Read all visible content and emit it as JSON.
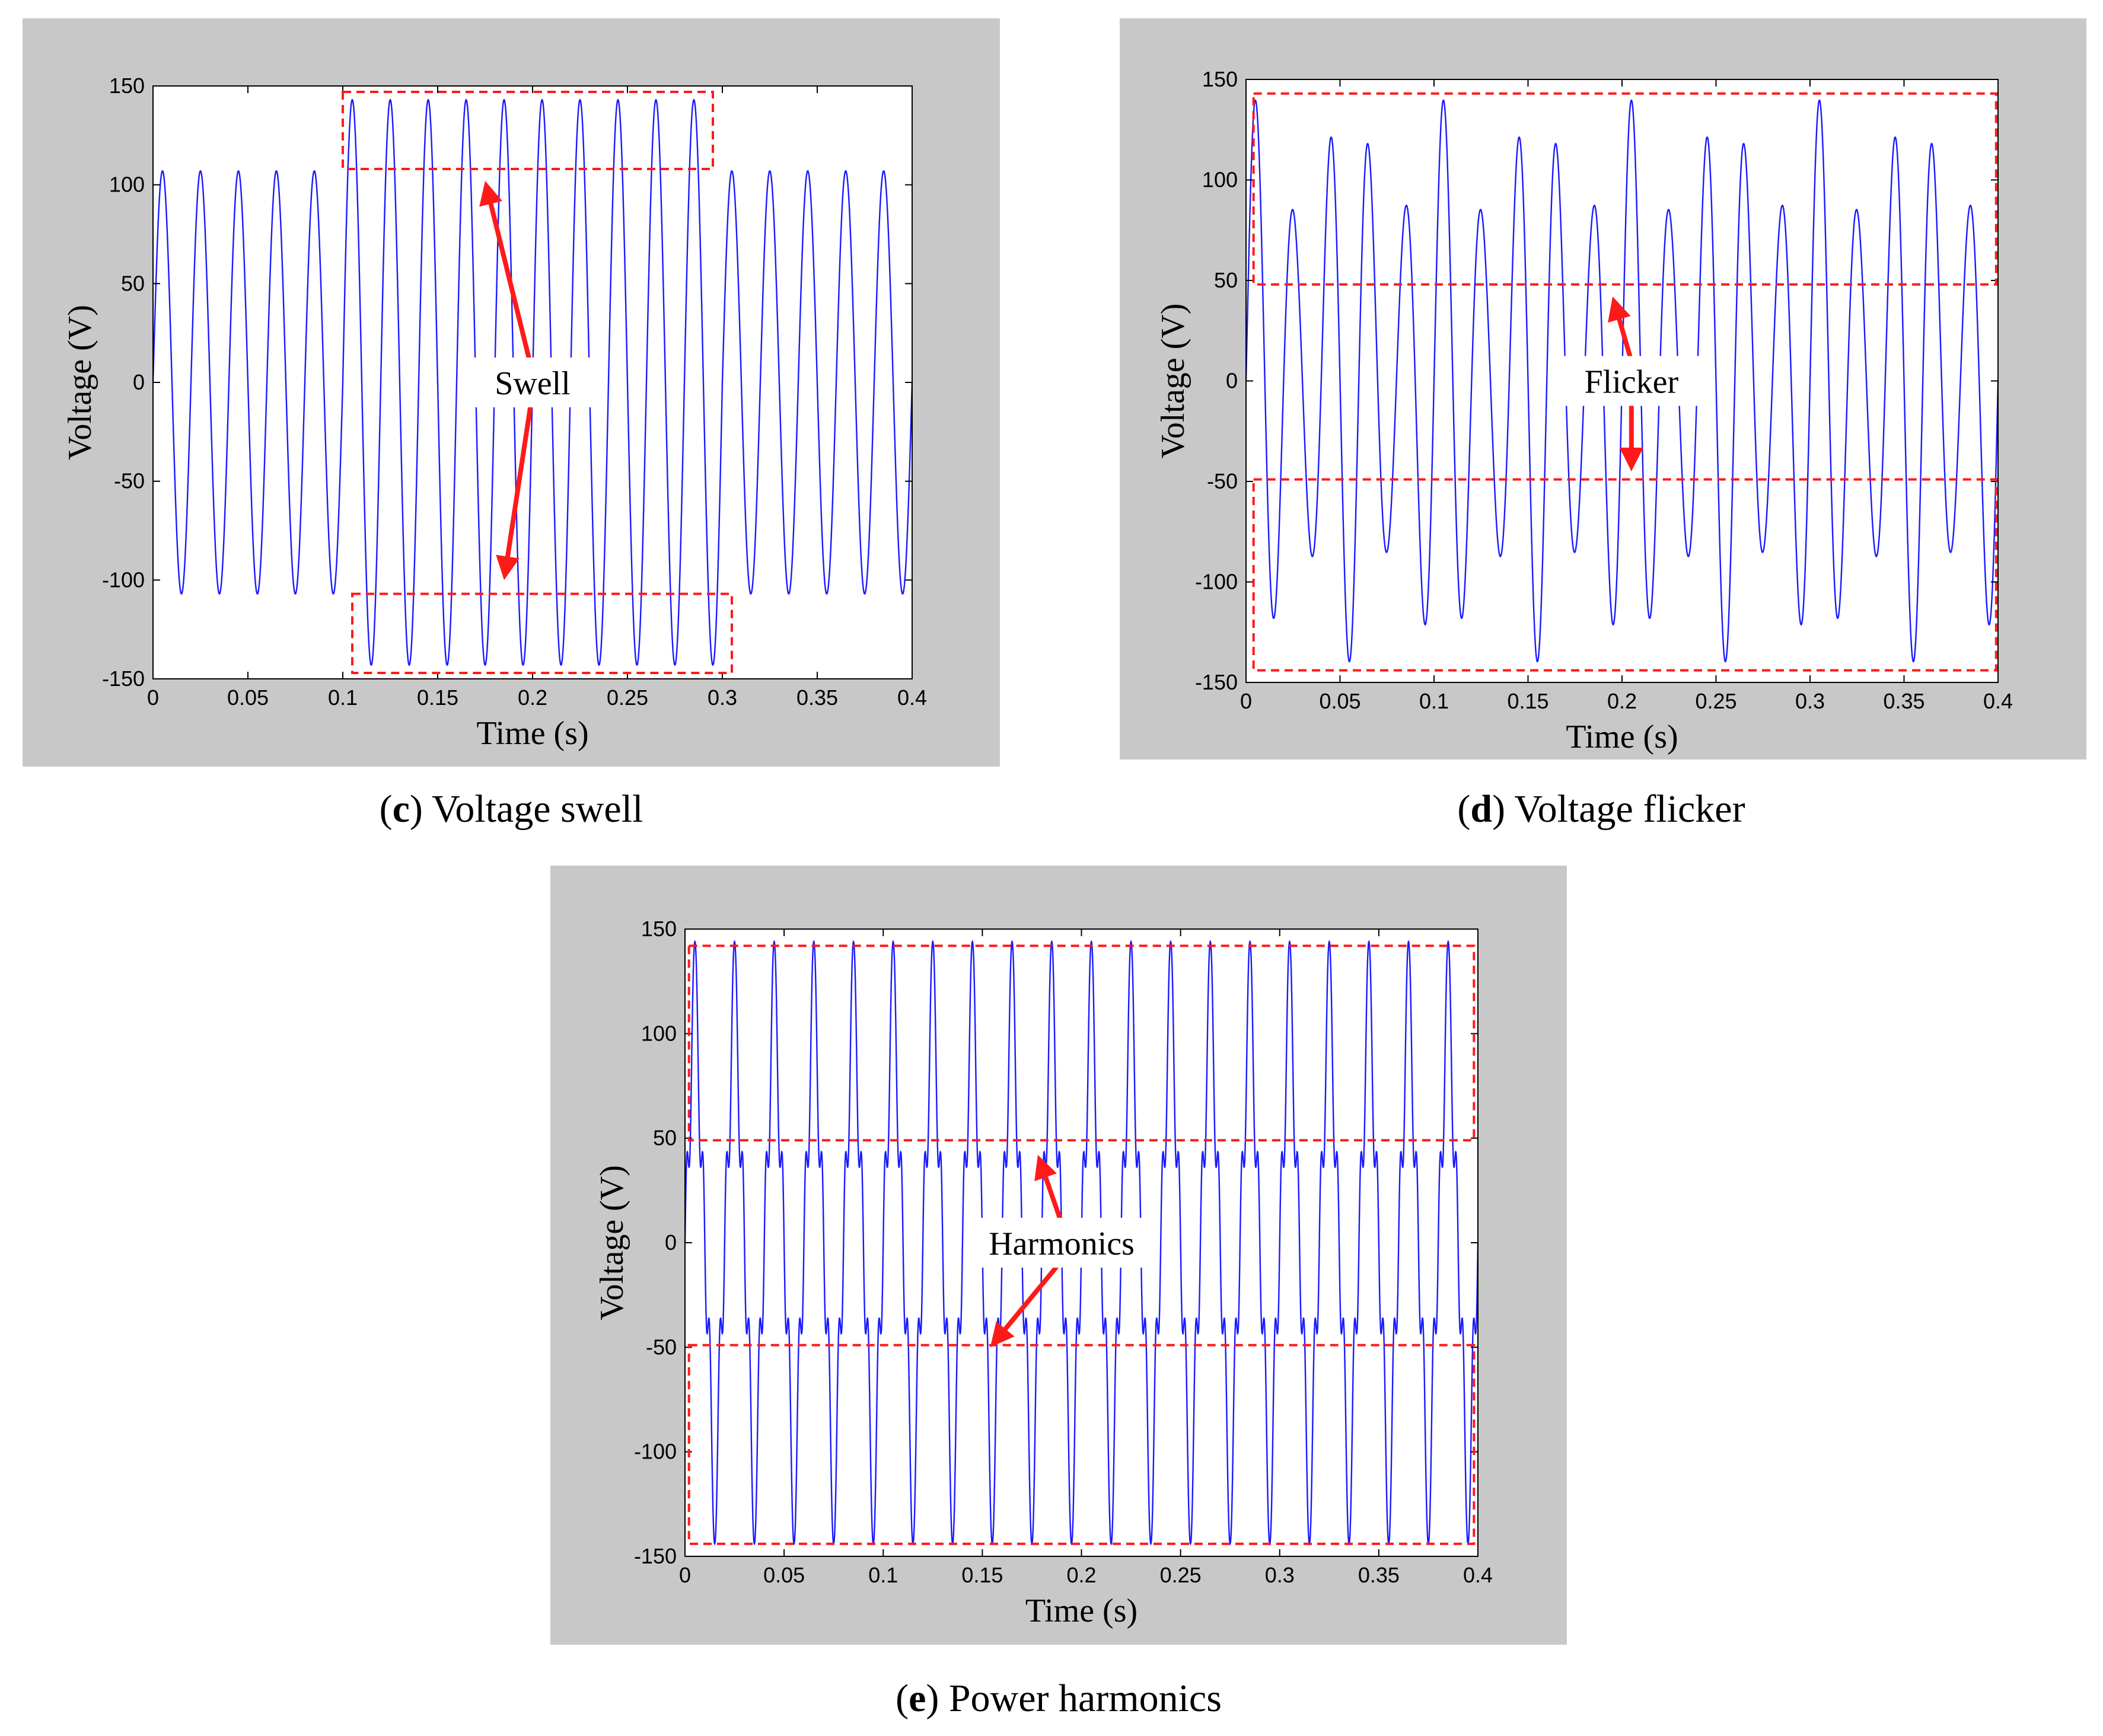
{
  "colors": {
    "signal": "#1a1aff",
    "highlight": "#ff1a1a",
    "panel_bg": "#c8c8c8"
  },
  "chart_data": [
    {
      "id": "c",
      "type": "line",
      "title": "Voltage swell",
      "caption_letter": "c",
      "caption_text": "Voltage swell",
      "xlabel": "Time (s)",
      "ylabel": "Voltage (V)",
      "xlim": [
        0,
        0.4
      ],
      "ylim": [
        -150,
        150
      ],
      "xticks": [
        "0",
        "0.05",
        "0.1",
        "0.15",
        "0.2",
        "0.25",
        "0.3",
        "0.35",
        "0.4"
      ],
      "yticks": [
        "150",
        "100",
        "50",
        "0",
        "-50",
        "-100",
        "-150"
      ],
      "series": [
        {
          "name": "Voltage",
          "waveform": "sine",
          "frequency_hz": 50,
          "amplitude": 107,
          "swell": {
            "t_start": 0.1,
            "t_end": 0.3,
            "amplitude": 143
          }
        }
      ],
      "annotation": {
        "label": "Swell",
        "regions": [
          {
            "x": [
              0.1,
              0.295
            ],
            "y": [
              108,
              147
            ]
          },
          {
            "x": [
              0.105,
              0.305
            ],
            "y": [
              -147,
              -107
            ]
          }
        ],
        "arrow_targets": [
          {
            "x": 0.175,
            "y": 102
          },
          {
            "x": 0.185,
            "y": -100
          }
        ],
        "label_pos": {
          "x": 0.2,
          "y": 0
        }
      }
    },
    {
      "id": "d",
      "type": "line",
      "title": "Voltage flicker",
      "caption_letter": "d",
      "caption_text": "Voltage flicker",
      "xlabel": "Time (s)",
      "ylabel": "Voltage (V)",
      "xlim": [
        0,
        0.4
      ],
      "ylim": [
        -150,
        150
      ],
      "xticks": [
        "0",
        "0.05",
        "0.1",
        "0.15",
        "0.2",
        "0.25",
        "0.3",
        "0.35",
        "0.4"
      ],
      "yticks": [
        "150",
        "100",
        "50",
        "0",
        "-50",
        "-100",
        "-150"
      ],
      "series": [
        {
          "name": "Voltage",
          "waveform": "modulated_sine",
          "frequency_hz": 50,
          "amplitude": 110,
          "modulation_depth": 0.27,
          "modulation_hz": 20
        }
      ],
      "annotation": {
        "label": "Flicker",
        "regions": [
          {
            "x": [
              0.004,
              0.399
            ],
            "y": [
              48,
              143
            ]
          },
          {
            "x": [
              0.004,
              0.399
            ],
            "y": [
              -144,
              -49
            ]
          }
        ],
        "arrow_targets": [
          {
            "x": 0.195,
            "y": 42
          },
          {
            "x": 0.205,
            "y": -45
          }
        ],
        "label_pos": {
          "x": 0.205,
          "y": 0
        }
      }
    },
    {
      "id": "e",
      "type": "line",
      "title": "Power harmonics",
      "caption_letter": "e",
      "caption_text": "Power harmonics",
      "xlabel": "Time (s)",
      "ylabel": "Voltage (V)",
      "xlim": [
        0,
        0.4
      ],
      "ylim": [
        -150,
        150
      ],
      "xticks": [
        "0",
        "0.05",
        "0.1",
        "0.15",
        "0.2",
        "0.25",
        "0.3",
        "0.35",
        "0.4"
      ],
      "yticks": [
        "150",
        "100",
        "50",
        "0",
        "-50",
        "-100",
        "-150"
      ],
      "series": [
        {
          "name": "Voltage",
          "waveform": "harmonic",
          "frequency_hz": 50,
          "amplitude": 110,
          "harmonics": [
            {
              "order": 3,
              "amplitude": 22
            },
            {
              "order": 5,
              "amplitude": 20
            },
            {
              "order": 7,
              "amplitude": 8
            }
          ]
        }
      ],
      "annotation": {
        "label": "Harmonics",
        "regions": [
          {
            "x": [
              0.002,
              0.398
            ],
            "y": [
              49,
              142
            ]
          },
          {
            "x": [
              0.002,
              0.398
            ],
            "y": [
              -144,
              -49
            ]
          }
        ],
        "arrow_targets": [
          {
            "x": 0.178,
            "y": 42
          },
          {
            "x": 0.154,
            "y": -50
          }
        ],
        "label_pos": {
          "x": 0.19,
          "y": 0
        }
      }
    }
  ]
}
